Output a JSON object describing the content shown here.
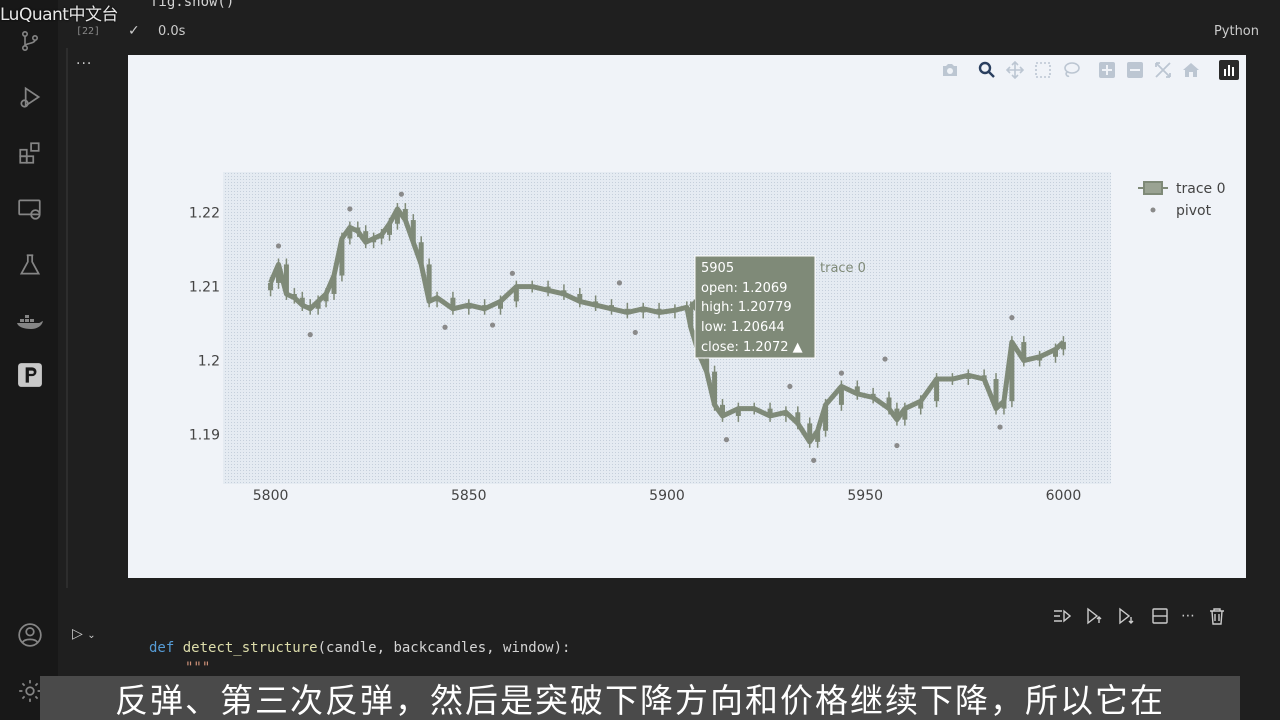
{
  "brand": {
    "text": "LuQuant中文台"
  },
  "top_cell": {
    "code": "fig.show()",
    "exec_count": "[22]",
    "duration": "0.0s",
    "language": "Python",
    "more": "..."
  },
  "next_cell": {
    "code_line1_kw": "def",
    "code_line1_fn": "detect_structure",
    "code_line1_rest": "(candle, backcandles, window):",
    "code_line2": "\"\"\""
  },
  "subtitle": {
    "text": "反弹、第三次反弹，然后是突破下降方向和价格继续下降，所以它在"
  },
  "colors": {
    "candle": "#7f8a78",
    "pivot": "#8a8a8a",
    "plot_bg": "#e5ebf2",
    "hover_bg": "#7f8a78",
    "hover_text": "#ffffff"
  },
  "legend": {
    "items": [
      "trace 0",
      "pivot"
    ]
  },
  "hover": {
    "x_label": "5905",
    "series": "trace 0",
    "open": "open: 1.2069",
    "high": "high: 1.20779",
    "low": "low: 1.20644",
    "close": "close: 1.2072 ▲"
  },
  "chart_data": {
    "type": "candlestick",
    "x_ticks": [
      "5800",
      "5850",
      "5900",
      "5950",
      "6000"
    ],
    "y_ticks": [
      "1.19",
      "1.2",
      "1.21",
      "1.22"
    ],
    "xlim": [
      5788,
      6012
    ],
    "ylim": [
      1.1833,
      1.2255
    ],
    "series": [
      {
        "name": "trace 0",
        "x": [
          5800,
          5802,
          5804,
          5806,
          5808,
          5810,
          5812,
          5814,
          5816,
          5818,
          5820,
          5822,
          5824,
          5826,
          5828,
          5830,
          5832,
          5834,
          5836,
          5838,
          5840,
          5842,
          5846,
          5850,
          5854,
          5858,
          5862,
          5866,
          5870,
          5874,
          5878,
          5882,
          5886,
          5890,
          5894,
          5898,
          5902,
          5905,
          5906,
          5908,
          5910,
          5912,
          5914,
          5918,
          5922,
          5926,
          5930,
          5933,
          5936,
          5938,
          5940,
          5944,
          5948,
          5952,
          5956,
          5958,
          5960,
          5964,
          5968,
          5972,
          5976,
          5980,
          5983,
          5985,
          5987,
          5990,
          5994,
          5998,
          6000
        ],
        "close": [
          1.2105,
          1.213,
          1.209,
          1.2085,
          1.2075,
          1.207,
          1.208,
          1.209,
          1.2115,
          1.2165,
          1.218,
          1.2175,
          1.216,
          1.2165,
          1.217,
          1.2185,
          1.2205,
          1.219,
          1.216,
          1.213,
          1.208,
          1.2085,
          1.207,
          1.2075,
          1.207,
          1.208,
          1.21,
          1.21,
          1.2095,
          1.209,
          1.208,
          1.2075,
          1.207,
          1.2065,
          1.207,
          1.2065,
          1.2068,
          1.2072,
          1.2045,
          1.201,
          1.1985,
          1.194,
          1.1925,
          1.1935,
          1.1935,
          1.1925,
          1.193,
          1.1915,
          1.189,
          1.1905,
          1.194,
          1.1965,
          1.1955,
          1.195,
          1.1935,
          1.192,
          1.1935,
          1.1945,
          1.1975,
          1.1975,
          1.198,
          1.1975,
          1.1935,
          1.1945,
          1.2025,
          1.2,
          1.2005,
          1.2015,
          1.2025
        ]
      },
      {
        "name": "pivot",
        "x": [
          5802,
          5810,
          5820,
          5833,
          5844,
          5856,
          5861,
          5888,
          5892,
          5915,
          5931,
          5937,
          5944,
          5955,
          5958,
          5984,
          5987
        ],
        "y": [
          1.2155,
          1.2035,
          1.2205,
          1.2225,
          1.2045,
          1.2048,
          1.2118,
          1.2105,
          1.2038,
          1.1893,
          1.1965,
          1.1865,
          1.1983,
          1.2002,
          1.1885,
          1.191,
          1.2058
        ]
      }
    ]
  }
}
